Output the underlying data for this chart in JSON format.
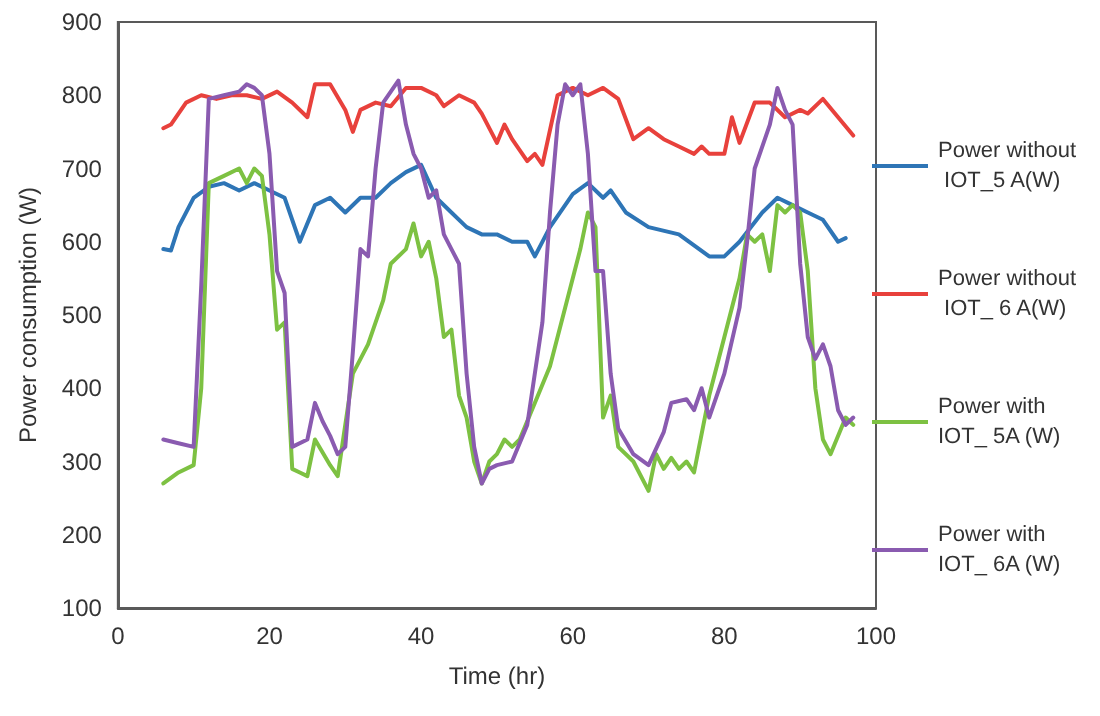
{
  "chart_data": {
    "type": "line",
    "xlabel": "Time (hr)",
    "ylabel": "Power consumption (W)",
    "xlim": [
      0,
      100
    ],
    "xticks": [
      0,
      20,
      40,
      60,
      80,
      100
    ],
    "ylim": [
      100,
      900
    ],
    "yticks": [
      100,
      200,
      300,
      400,
      500,
      600,
      700,
      800,
      900
    ],
    "grid": false,
    "legend": "right",
    "marker": "none",
    "line_style": "solid",
    "series": [
      {
        "name": "Power without IOT_5 A(W)",
        "color": "#2e75b6",
        "x": [
          6,
          7,
          8,
          10,
          12,
          14,
          16,
          18,
          20,
          22,
          24,
          26,
          28,
          30,
          32,
          34,
          36,
          38,
          40,
          42,
          44,
          46,
          48,
          50,
          52,
          54,
          55,
          57,
          60,
          62,
          64,
          65,
          67,
          70,
          74,
          78,
          80,
          82,
          85,
          87,
          89,
          91,
          93,
          95,
          96
        ],
        "values": [
          590,
          588,
          620,
          660,
          675,
          680,
          670,
          680,
          670,
          660,
          600,
          650,
          660,
          640,
          660,
          660,
          680,
          695,
          705,
          660,
          640,
          620,
          610,
          610,
          600,
          600,
          580,
          620,
          665,
          680,
          660,
          670,
          640,
          620,
          610,
          580,
          580,
          600,
          640,
          660,
          650,
          640,
          630,
          600,
          605
        ]
      },
      {
        "name": "Power without IOT_ 6 A(W)",
        "color": "#e8413c",
        "x": [
          6,
          7,
          9,
          11,
          13,
          15,
          17,
          19,
          21,
          23,
          25,
          26,
          28,
          30,
          31,
          32,
          34,
          36,
          38,
          40,
          42,
          43,
          45,
          47,
          48,
          50,
          51,
          52,
          54,
          55,
          56,
          58,
          60,
          62,
          64,
          66,
          68,
          70,
          72,
          74,
          76,
          77,
          78,
          80,
          81,
          82,
          84,
          86,
          88,
          90,
          91,
          93,
          95,
          97
        ],
        "values": [
          755,
          760,
          790,
          800,
          795,
          800,
          800,
          795,
          805,
          790,
          770,
          815,
          815,
          780,
          750,
          780,
          790,
          785,
          810,
          810,
          800,
          785,
          800,
          790,
          775,
          735,
          760,
          740,
          710,
          720,
          705,
          800,
          810,
          800,
          810,
          795,
          740,
          755,
          740,
          730,
          720,
          730,
          720,
          720,
          770,
          735,
          790,
          790,
          770,
          780,
          775,
          795,
          770,
          745
        ]
      },
      {
        "name": "Power with IOT_ 5A (W)",
        "color": "#7dc142",
        "x": [
          6,
          8,
          10,
          11,
          12,
          14,
          16,
          17,
          18,
          19,
          20,
          21,
          22,
          23,
          24,
          25,
          26,
          28,
          29,
          31,
          33,
          35,
          36,
          38,
          39,
          40,
          41,
          42,
          43,
          44,
          45,
          46,
          47,
          48,
          49,
          50,
          51,
          52,
          53,
          55,
          57,
          59,
          61,
          62,
          63,
          64,
          65,
          66,
          68,
          70,
          71,
          72,
          73,
          74,
          75,
          76,
          78,
          80,
          82,
          83,
          84,
          85,
          86,
          87,
          88,
          89,
          90,
          91,
          92,
          93,
          94,
          96,
          97
        ],
        "values": [
          270,
          285,
          295,
          400,
          680,
          690,
          700,
          680,
          700,
          690,
          610,
          480,
          490,
          290,
          285,
          280,
          330,
          295,
          280,
          420,
          460,
          520,
          570,
          590,
          625,
          580,
          600,
          550,
          470,
          480,
          390,
          360,
          300,
          270,
          300,
          310,
          330,
          320,
          330,
          380,
          430,
          510,
          590,
          640,
          620,
          360,
          390,
          320,
          300,
          260,
          310,
          290,
          305,
          290,
          300,
          285,
          390,
          470,
          550,
          610,
          600,
          610,
          560,
          650,
          640,
          650,
          640,
          560,
          400,
          330,
          310,
          360,
          350
        ]
      },
      {
        "name": "Power with IOT_ 6A (W)",
        "color": "#8a5bb0",
        "x": [
          6,
          8,
          10,
          11,
          12,
          14,
          16,
          17,
          18,
          19,
          20,
          21,
          22,
          23,
          25,
          26,
          27,
          28,
          29,
          30,
          31,
          32,
          33,
          34,
          35,
          37,
          38,
          39,
          40,
          41,
          42,
          43,
          44,
          45,
          46,
          47,
          48,
          49,
          50,
          52,
          54,
          56,
          57,
          58,
          59,
          60,
          61,
          62,
          63,
          64,
          65,
          66,
          68,
          70,
          72,
          73,
          75,
          76,
          77,
          78,
          80,
          82,
          83,
          84,
          86,
          87,
          88,
          89,
          90,
          91,
          92,
          93,
          94,
          95,
          96,
          97
        ],
        "values": [
          330,
          325,
          320,
          540,
          795,
          800,
          805,
          815,
          810,
          800,
          720,
          560,
          530,
          320,
          330,
          380,
          355,
          335,
          310,
          320,
          450,
          590,
          580,
          700,
          790,
          820,
          760,
          720,
          700,
          660,
          670,
          610,
          590,
          570,
          420,
          320,
          270,
          290,
          295,
          300,
          350,
          490,
          640,
          760,
          815,
          800,
          815,
          720,
          560,
          560,
          420,
          345,
          310,
          295,
          340,
          380,
          385,
          370,
          400,
          360,
          420,
          510,
          600,
          700,
          760,
          810,
          780,
          760,
          570,
          470,
          440,
          460,
          430,
          370,
          350,
          360
        ]
      }
    ]
  }
}
